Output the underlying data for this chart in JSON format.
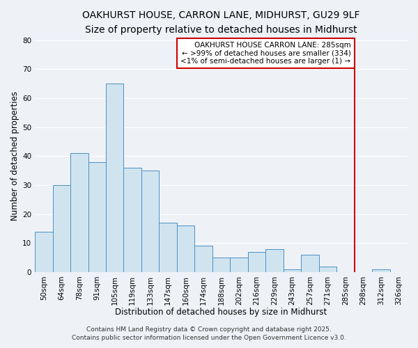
{
  "title": "OAKHURST HOUSE, CARRON LANE, MIDHURST, GU29 9LF",
  "subtitle": "Size of property relative to detached houses in Midhurst",
  "xlabel": "Distribution of detached houses by size in Midhurst",
  "ylabel": "Number of detached properties",
  "bin_labels": [
    "50sqm",
    "64sqm",
    "78sqm",
    "91sqm",
    "105sqm",
    "119sqm",
    "133sqm",
    "147sqm",
    "160sqm",
    "174sqm",
    "188sqm",
    "202sqm",
    "216sqm",
    "229sqm",
    "243sqm",
    "257sqm",
    "271sqm",
    "285sqm",
    "298sqm",
    "312sqm",
    "326sqm"
  ],
  "bar_values": [
    14,
    30,
    41,
    38,
    65,
    36,
    35,
    17,
    16,
    9,
    5,
    5,
    7,
    8,
    1,
    6,
    2,
    0,
    0,
    1,
    0
  ],
  "bar_color": "#d0e4f0",
  "bar_edge_color": "#4a90c4",
  "ylim": [
    0,
    80
  ],
  "yticks": [
    0,
    10,
    20,
    30,
    40,
    50,
    60,
    70,
    80
  ],
  "vline_color": "#cc0000",
  "annotation_box_text": "OAKHURST HOUSE CARRON LANE: 285sqm\n← >99% of detached houses are smaller (334)\n<1% of semi-detached houses are larger (1) →",
  "annotation_box_color": "#cc0000",
  "footer1": "Contains HM Land Registry data © Crown copyright and database right 2025.",
  "footer2": "Contains public sector information licensed under the Open Government Licence v3.0.",
  "bg_color": "#eef2f7",
  "grid_color": "#ffffff",
  "title_fontsize": 10,
  "subtitle_fontsize": 9,
  "axis_label_fontsize": 8.5,
  "tick_fontsize": 7.5,
  "annotation_fontsize": 7.5,
  "footer_fontsize": 6.5
}
